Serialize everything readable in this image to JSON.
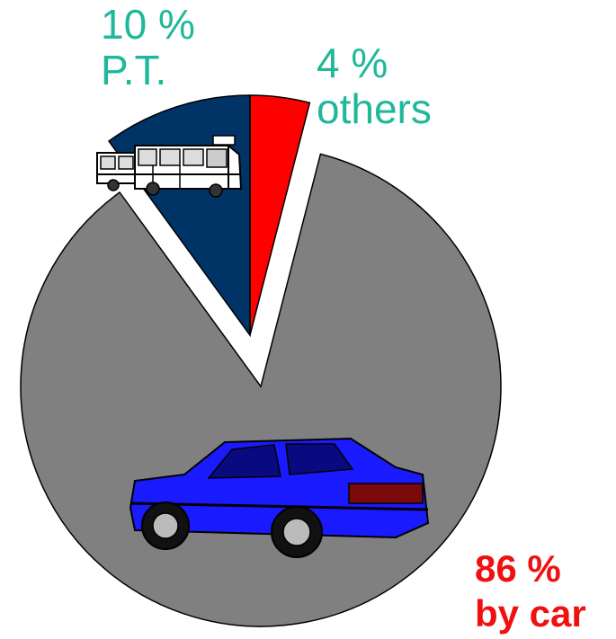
{
  "chart_data": {
    "type": "pie",
    "title": "",
    "slices": [
      {
        "percent_label": "4 %",
        "name_label": "others",
        "value": 4,
        "color": "#ff0000",
        "icon": ""
      },
      {
        "percent_label": "86 %",
        "name_label": "by car",
        "value": 86,
        "color": "#808080",
        "icon": "car-icon"
      },
      {
        "percent_label": "10 %",
        "name_label": "P.T.",
        "value": 10,
        "color": "#003366",
        "icon": "bus-icon"
      }
    ],
    "label_colors": {
      "others": "#1fb89a",
      "by car": "#f01010",
      "P.T.": "#1fb89a"
    },
    "car_color": "#1a1aff"
  }
}
